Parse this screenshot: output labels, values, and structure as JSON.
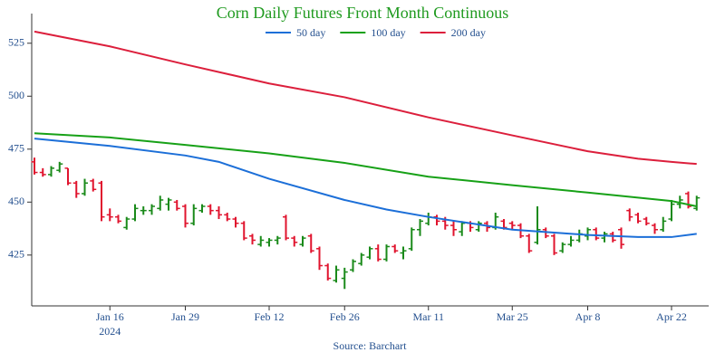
{
  "chart_data": {
    "type": "ohlc",
    "title": "Corn Daily Futures Front Month Continuous",
    "source": "Source: Barchart",
    "x": [
      "2024-01-02",
      "2024-01-03",
      "2024-01-04",
      "2024-01-05",
      "2024-01-08",
      "2024-01-09",
      "2024-01-10",
      "2024-01-11",
      "2024-01-12",
      "2024-01-16",
      "2024-01-17",
      "2024-01-18",
      "2024-01-19",
      "2024-01-22",
      "2024-01-23",
      "2024-01-24",
      "2024-01-25",
      "2024-01-26",
      "2024-01-29",
      "2024-01-30",
      "2024-01-31",
      "2024-02-01",
      "2024-02-02",
      "2024-02-05",
      "2024-02-06",
      "2024-02-07",
      "2024-02-08",
      "2024-02-09",
      "2024-02-12",
      "2024-02-13",
      "2024-02-14",
      "2024-02-15",
      "2024-02-16",
      "2024-02-20",
      "2024-02-21",
      "2024-02-22",
      "2024-02-23",
      "2024-02-26",
      "2024-02-27",
      "2024-02-28",
      "2024-02-29",
      "2024-03-01",
      "2024-03-04",
      "2024-03-05",
      "2024-03-06",
      "2024-03-07",
      "2024-03-08",
      "2024-03-11",
      "2024-03-12",
      "2024-03-13",
      "2024-03-14",
      "2024-03-15",
      "2024-03-18",
      "2024-03-19",
      "2024-03-20",
      "2024-03-21",
      "2024-03-22",
      "2024-03-25",
      "2024-03-26",
      "2024-03-27",
      "2024-03-28",
      "2024-04-01",
      "2024-04-02",
      "2024-04-03",
      "2024-04-04",
      "2024-04-05",
      "2024-04-08",
      "2024-04-09",
      "2024-04-10",
      "2024-04-11",
      "2024-04-12",
      "2024-04-15",
      "2024-04-16",
      "2024-04-17",
      "2024-04-18",
      "2024-04-19",
      "2024-04-22",
      "2024-04-23",
      "2024-04-24",
      "2024-04-25"
    ],
    "open": [
      469,
      464,
      463,
      465,
      466,
      459,
      454,
      460,
      459,
      444,
      443,
      438,
      442,
      446,
      446,
      447,
      449,
      450,
      448,
      440,
      446,
      448,
      446,
      444,
      442,
      440,
      434,
      430,
      431,
      432,
      443,
      433,
      430,
      434,
      428,
      420,
      413,
      414,
      418,
      421,
      424,
      428,
      423,
      429,
      426,
      428,
      437,
      440,
      443,
      441,
      439,
      436,
      440,
      437,
      440,
      438,
      441,
      440,
      439,
      434,
      431,
      437,
      434,
      427,
      430,
      432,
      434,
      437,
      433,
      435,
      437,
      446,
      444,
      442,
      439,
      437,
      442,
      449,
      454,
      447
    ],
    "high": [
      471,
      466,
      467,
      469,
      466,
      460,
      461,
      461,
      460,
      447,
      444,
      443,
      449,
      448,
      449,
      453,
      452,
      451,
      449,
      449,
      449,
      449,
      448,
      445,
      443,
      441,
      435,
      434,
      433,
      434,
      444,
      434,
      434,
      435,
      429,
      421,
      420,
      419,
      423,
      426,
      429,
      430,
      430,
      430,
      429,
      438,
      442,
      445,
      444,
      443,
      441,
      441,
      441,
      441,
      441,
      445,
      442,
      441,
      440,
      435,
      448,
      438,
      435,
      431,
      434,
      437,
      438,
      438,
      436,
      436,
      438,
      447,
      445,
      443,
      440,
      443,
      451,
      453,
      455,
      453
    ],
    "low": [
      463,
      462,
      462,
      464,
      458,
      452,
      453,
      455,
      441,
      441,
      440,
      437,
      441,
      444,
      444,
      446,
      446,
      446,
      438,
      439,
      445,
      444,
      442,
      441,
      438,
      432,
      430,
      429,
      429,
      430,
      432,
      429,
      429,
      426,
      418,
      413,
      412,
      409,
      417,
      420,
      423,
      422,
      422,
      426,
      423,
      427,
      434,
      439,
      439,
      437,
      434,
      434,
      436,
      436,
      436,
      437,
      437,
      437,
      433,
      426,
      430,
      433,
      425,
      426,
      429,
      431,
      432,
      432,
      431,
      431,
      428,
      441,
      440,
      439,
      435,
      436,
      441,
      447,
      447,
      446
    ],
    "close": [
      464,
      463,
      466,
      468,
      459,
      454,
      459,
      456,
      443,
      443,
      441,
      442,
      447,
      446,
      448,
      451,
      451,
      447,
      440,
      447,
      448,
      446,
      444,
      442,
      440,
      433,
      432,
      432,
      432,
      433,
      433,
      431,
      433,
      427,
      420,
      414,
      418,
      417,
      422,
      425,
      428,
      423,
      429,
      427,
      427,
      437,
      441,
      443,
      441,
      439,
      437,
      440,
      438,
      440,
      438,
      443,
      438,
      439,
      434,
      427,
      437,
      434,
      426,
      430,
      432,
      435,
      437,
      433,
      435,
      432,
      430,
      443,
      441,
      440,
      437,
      441,
      449,
      451,
      448,
      452
    ],
    "up_color": "#1a8a1a",
    "down_color": "#e0142e",
    "series": [
      {
        "name": "50 day",
        "color": "#1c6fd8",
        "x": [
          "2024-01-02",
          "2024-01-16",
          "2024-01-29",
          "2024-02-02",
          "2024-02-12",
          "2024-02-26",
          "2024-03-04",
          "2024-03-11",
          "2024-03-25",
          "2024-04-08",
          "2024-04-16",
          "2024-04-22",
          "2024-04-25"
        ],
        "values": [
          480,
          476.5,
          472,
          469,
          461,
          451,
          446.5,
          443,
          437,
          434.5,
          433.5,
          433.5,
          435
        ]
      },
      {
        "name": "100 day",
        "color": "#17a117",
        "x": [
          "2024-01-02",
          "2024-01-16",
          "2024-01-29",
          "2024-02-12",
          "2024-02-26",
          "2024-03-11",
          "2024-03-25",
          "2024-04-08",
          "2024-04-22",
          "2024-04-25"
        ],
        "values": [
          482.5,
          480.5,
          477,
          473,
          468.5,
          462,
          458,
          454.5,
          450.5,
          448
        ]
      },
      {
        "name": "200 day",
        "color": "#dc1f3c",
        "x": [
          "2024-01-02",
          "2024-01-16",
          "2024-01-29",
          "2024-02-12",
          "2024-02-26",
          "2024-03-11",
          "2024-03-25",
          "2024-04-08",
          "2024-04-16",
          "2024-04-22",
          "2024-04-25"
        ],
        "values": [
          530.5,
          523.5,
          515,
          506,
          499.5,
          490,
          481.5,
          474,
          470.5,
          469,
          468
        ]
      }
    ],
    "ylim": [
      401,
      539
    ],
    "yticks": [
      425,
      450,
      475,
      500,
      525
    ],
    "xticks": [
      {
        "value": "2024-01-16",
        "label": "Jan 16"
      },
      {
        "value": "2024-01-29",
        "label": "Jan 29"
      },
      {
        "value": "2024-02-12",
        "label": "Feb 12"
      },
      {
        "value": "2024-02-26",
        "label": "Feb 26"
      },
      {
        "value": "2024-03-11",
        "label": "Mar 11"
      },
      {
        "value": "2024-03-25",
        "label": "Mar 25"
      },
      {
        "value": "2024-04-08",
        "label": "Apr 8"
      },
      {
        "value": "2024-04-22",
        "label": "Apr 22"
      }
    ],
    "xtick_year": "2024",
    "legend": "top"
  }
}
